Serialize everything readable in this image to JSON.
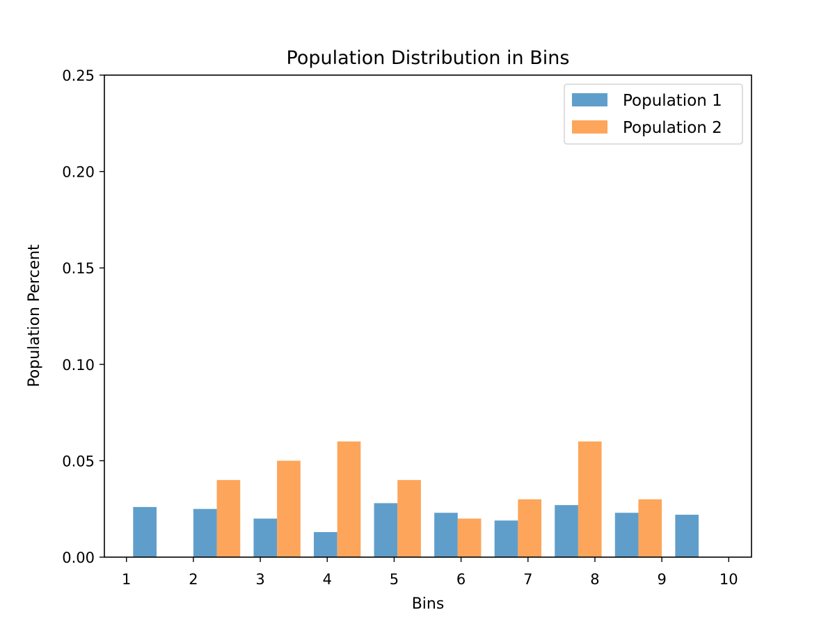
{
  "chart_data": {
    "type": "bar",
    "title": "Population Distribution in Bins",
    "xlabel": "Bins",
    "ylabel": "Population Percent",
    "xlim": [
      0.67,
      10.34
    ],
    "ylim": [
      0,
      0.25
    ],
    "x_ticks": [
      1,
      2,
      3,
      4,
      5,
      6,
      7,
      8,
      9,
      10
    ],
    "x_tick_labels": [
      "1",
      "2",
      "3",
      "4",
      "5",
      "6",
      "7",
      "8",
      "9",
      "10"
    ],
    "y_ticks": [
      0,
      0.05,
      0.1,
      0.15,
      0.2,
      0.25
    ],
    "y_tick_labels": [
      "0.00",
      "0.05",
      "0.10",
      "0.15",
      "0.20",
      "0.25"
    ],
    "bar_width": 0.35,
    "legend_position": "top-right",
    "grid": false,
    "series": [
      {
        "name": "Population 1",
        "color": "#5f9ecb",
        "x": [
          1.275,
          2.175,
          3.075,
          3.975,
          4.875,
          5.775,
          6.675,
          7.575,
          8.475,
          9.375
        ],
        "values": [
          0.026,
          0.025,
          0.02,
          0.013,
          0.028,
          0.023,
          0.019,
          0.027,
          0.023,
          0.022
        ]
      },
      {
        "name": "Population 2",
        "color": "#fda55a",
        "x": [
          2.525,
          3.425,
          4.325,
          5.225,
          6.125,
          7.025,
          7.925,
          8.825
        ],
        "values": [
          0.04,
          0.05,
          0.06,
          0.04,
          0.02,
          0.03,
          0.06,
          0.03
        ]
      }
    ]
  }
}
